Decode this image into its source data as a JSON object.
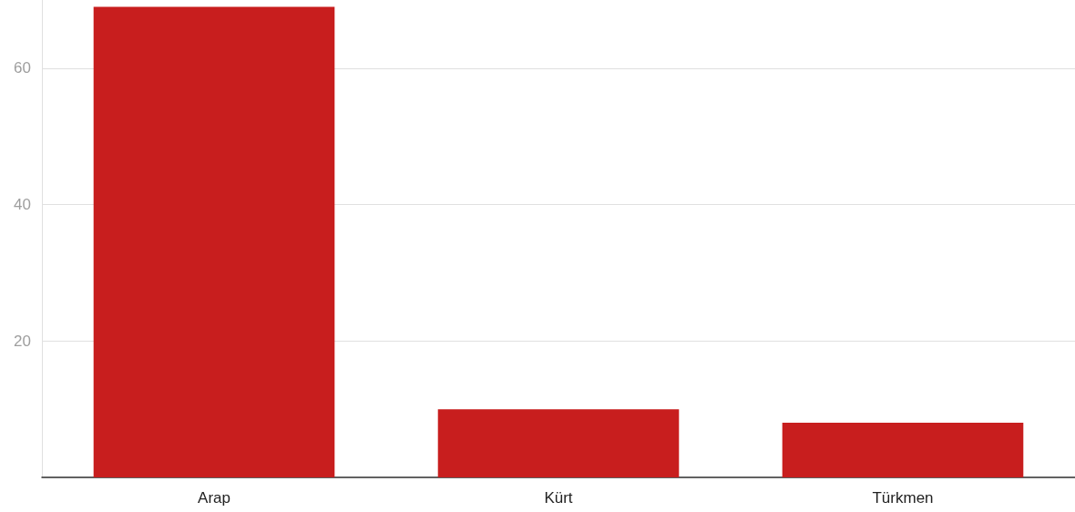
{
  "chart_data": {
    "type": "bar",
    "categories": [
      "Arap",
      "Kürt",
      "Türkmen"
    ],
    "values": [
      69,
      10,
      8
    ],
    "color": "#c81e1e",
    "ylim": [
      0,
      70
    ],
    "yticks": [
      {
        "value": 0,
        "label": null
      },
      20,
      40,
      60
    ],
    "grid": "y"
  }
}
